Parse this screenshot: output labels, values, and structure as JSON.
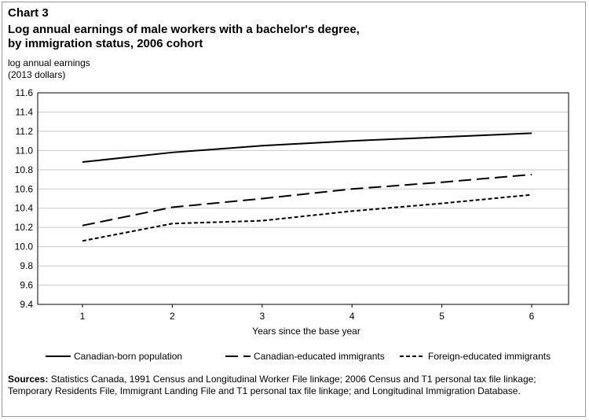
{
  "header": {
    "chart_number": "Chart 3",
    "title_line1": "Log annual earnings of male workers with a bachelor's degree,",
    "title_line2": "by immigration status, 2006 cohort"
  },
  "footer": {
    "sources_label": "Sources:",
    "sources_text": " Statistics Canada, 1991 Census and Longitudinal Worker File linkage; 2006 Census and T1 personal tax file linkage; Temporary Residents File, Immigrant Landing File and T1 personal tax file linkage; and Longitudinal Immigration Database."
  },
  "chart_data": {
    "type": "line",
    "title": "Log annual earnings of male workers with a bachelor's degree, by immigration status, 2006 cohort",
    "ylabel_line1": "log annual earnings",
    "ylabel_line2": "(2013 dollars)",
    "xlabel": "Years since the base year",
    "x": [
      1,
      2,
      3,
      4,
      5,
      6
    ],
    "ylim": [
      9.4,
      11.6
    ],
    "yticks": [
      "9.4",
      "9.6",
      "9.8",
      "10.0",
      "10.2",
      "10.4",
      "10.6",
      "10.8",
      "11.0",
      "11.2",
      "11.4",
      "11.6"
    ],
    "grid": "horizontal",
    "legend_position": "bottom",
    "series": [
      {
        "name": "Canadian-born population",
        "style": "solid",
        "values": [
          10.88,
          10.98,
          11.05,
          11.1,
          11.14,
          11.18
        ]
      },
      {
        "name": "Canadian-educated immigrants",
        "style": "long-dash",
        "values": [
          10.22,
          10.41,
          10.5,
          10.6,
          10.67,
          10.75
        ]
      },
      {
        "name": "Foreign-educated immigrants",
        "style": "short-dash",
        "values": [
          10.06,
          10.24,
          10.27,
          10.37,
          10.45,
          10.54
        ]
      }
    ],
    "line_color": "#000000",
    "grid_color": "#c8c8c8"
  }
}
